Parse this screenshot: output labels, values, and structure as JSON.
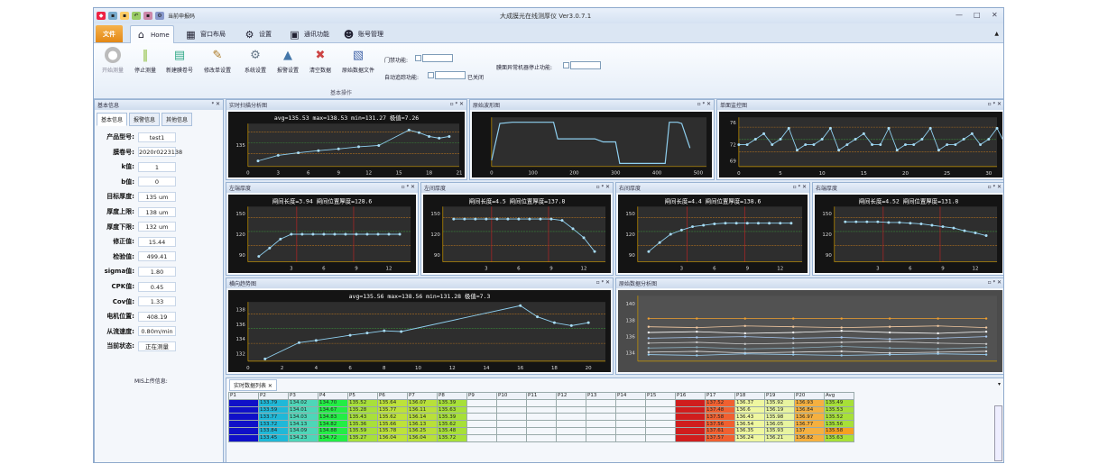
{
  "app": {
    "title": "大成膜光在线测厚仪 Ver3.0.7.1",
    "quick_access_label": "当前申报码",
    "file_tab": "文件",
    "tabs": [
      {
        "label": "Home",
        "icon": "home-icon"
      },
      {
        "label": "窗口布局",
        "icon": "layout-icon"
      },
      {
        "label": "设置",
        "icon": "gear-icon"
      },
      {
        "label": "通讯功能",
        "icon": "comm-icon"
      },
      {
        "label": "账号管理",
        "icon": "user-icon"
      }
    ]
  },
  "ribbon": {
    "buttons": [
      {
        "label": "开始测量",
        "icon": "play-icon"
      },
      {
        "label": "停止测量",
        "icon": "pause-icon"
      },
      {
        "label": "新建膜卷号",
        "icon": "new-roll-icon"
      },
      {
        "label": "修改单设置",
        "icon": "edit-settings-icon"
      },
      {
        "label": "系统设置",
        "icon": "system-settings-icon"
      },
      {
        "label": "报警设置",
        "icon": "alarm-settings-icon"
      },
      {
        "label": "清空数据",
        "icon": "clear-data-icon"
      },
      {
        "label": "原始数据文件",
        "icon": "raw-file-icon"
      }
    ],
    "group_label": "基本操作",
    "gate_label": "门禁功能:",
    "auto_follow_label": "自动追踪功能:",
    "auto_follow_state": "已关闭",
    "stop_on_fault_label": "膜面异常机器停止功能:"
  },
  "left": {
    "header": "基本信息",
    "tabs": [
      "基本信息",
      "报警信息",
      "其他信息"
    ],
    "fields": [
      {
        "label": "产品型号:",
        "value": "test1"
      },
      {
        "label": "膜卷号:",
        "value": "2020r0223138"
      },
      {
        "label": "k值:",
        "value": "1"
      },
      {
        "label": "b值:",
        "value": "0"
      },
      {
        "label": "目标厚度:",
        "value": "135 um"
      },
      {
        "label": "厚度上限:",
        "value": "138 um"
      },
      {
        "label": "厚度下限:",
        "value": "132 um"
      },
      {
        "label": "修正值:",
        "value": "15.44"
      },
      {
        "label": "检验值:",
        "value": "499.41"
      },
      {
        "label": "sigma值:",
        "value": "1.80"
      },
      {
        "label": "CPK值:",
        "value": "0.45"
      },
      {
        "label": "Cov值:",
        "value": "1.33"
      },
      {
        "label": "电机位置:",
        "value": "408.19"
      },
      {
        "label": "从流速度:",
        "value": "0.80m/min"
      },
      {
        "label": "当前状态:",
        "value": "正在测量"
      }
    ],
    "mis_label": "MIS上传信息:"
  },
  "panels": {
    "realtime": {
      "title": "实时扫描分析图",
      "caption": "avg=135.53 max=138.53 min=131.27 极值=7.26"
    },
    "raw": {
      "title": "原始波形图"
    },
    "single": {
      "title": "单面监控图"
    },
    "z1": {
      "title": "左端厚度",
      "caption": "闸间长度=3.94   闸间位置厚度=128.6"
    },
    "z2": {
      "title": "左间厚度",
      "caption": "闸间长度=4.5   闸间位置厚度=137.8"
    },
    "z3": {
      "title": "右间厚度",
      "caption": "闸间长度=4.4   闸间位置厚度=138.6"
    },
    "z4": {
      "title": "右端厚度",
      "caption": "闸间长度=4.52   闸间位置厚度=131.8"
    },
    "profile": {
      "title": "横向趋势图",
      "caption": "avg=135.56 max=138.56 min=131.28 极值=7.3"
    },
    "history": {
      "title": "原始数据分析图"
    },
    "table": {
      "title": "实时数据列表"
    }
  },
  "table": {
    "headers": [
      "P1",
      "P2",
      "P3",
      "P4",
      "P5",
      "P6",
      "P7",
      "P8",
      "P9",
      "P10",
      "P11",
      "P12",
      "P13",
      "P14",
      "P15",
      "P16",
      "P17",
      "P18",
      "P19",
      "P20",
      "Avg"
    ],
    "rows": [
      [
        "",
        "133.79",
        "134.02",
        "134.70",
        "135.52",
        "135.64",
        "136.07",
        "135.39",
        "",
        "",
        "",
        "",
        "",
        "",
        "",
        "",
        "137.52",
        "136.37",
        "135.92",
        "136.93",
        "135.49"
      ],
      [
        "",
        "133.59",
        "134.01",
        "134.67",
        "135.28",
        "135.77",
        "136.11",
        "135.63",
        "",
        "",
        "",
        "",
        "",
        "",
        "",
        "",
        "137.48",
        "136.6",
        "136.19",
        "136.84",
        "135.53"
      ],
      [
        "",
        "133.77",
        "134.03",
        "134.83",
        "135.43",
        "135.62",
        "136.14",
        "135.39",
        "",
        "",
        "",
        "",
        "",
        "",
        "",
        "",
        "137.58",
        "136.43",
        "135.98",
        "136.97",
        "135.52"
      ],
      [
        "",
        "133.72",
        "134.13",
        "134.82",
        "135.36",
        "135.66",
        "136.13",
        "135.62",
        "",
        "",
        "",
        "",
        "",
        "",
        "",
        "",
        "137.56",
        "136.54",
        "136.05",
        "136.77",
        "135.56"
      ],
      [
        "",
        "133.84",
        "134.09",
        "134.88",
        "135.59",
        "135.78",
        "136.25",
        "135.48",
        "",
        "",
        "",
        "",
        "",
        "",
        "",
        "",
        "137.61",
        "136.35",
        "135.93",
        "137",
        "135.58"
      ],
      [
        "",
        "133.45",
        "134.23",
        "134.72",
        "135.27",
        "136.04",
        "136.04",
        "135.72",
        "",
        "",
        "",
        "",
        "",
        "",
        "",
        "",
        "137.57",
        "136.24",
        "136.21",
        "136.82",
        "135.63"
      ]
    ]
  },
  "chart_data": [
    {
      "type": "line",
      "name": "realtime",
      "x": [
        1,
        3,
        5,
        7,
        9,
        11,
        13,
        16,
        17,
        18,
        19,
        20
      ],
      "values": [
        131.3,
        132.6,
        133.2,
        133.7,
        134.1,
        134.6,
        134.9,
        138.5,
        137.9,
        137.0,
        136.6,
        137.0
      ],
      "xticks": [
        0,
        3,
        6,
        9,
        12,
        15,
        18,
        21
      ],
      "yticks": [
        135
      ],
      "ylim": [
        130,
        140
      ],
      "xlim": [
        0,
        21
      ]
    },
    {
      "type": "line",
      "name": "raw",
      "x": [
        0,
        20,
        50,
        150,
        160,
        250,
        270,
        300,
        310,
        420,
        430,
        450,
        460,
        480
      ],
      "values": [
        10,
        70,
        72,
        72,
        45,
        45,
        40,
        40,
        5,
        5,
        72,
        72,
        70,
        30
      ],
      "xticks": [
        0,
        100,
        200,
        300,
        400,
        500
      ],
      "xlim": [
        0,
        520
      ],
      "ylim": [
        0,
        80
      ]
    },
    {
      "type": "line",
      "name": "single",
      "values": [
        72,
        72,
        73,
        74,
        72,
        73,
        75,
        71,
        72,
        72,
        73,
        75,
        71,
        72,
        73,
        74,
        72,
        72,
        75,
        71,
        72,
        72,
        73,
        75,
        71,
        72,
        72,
        73,
        74,
        72,
        73,
        75,
        72,
        71,
        72,
        73,
        74,
        75,
        70
      ],
      "xticks": [
        0,
        5,
        10,
        15,
        20,
        25,
        30
      ],
      "yticks": [
        69,
        72,
        76
      ],
      "ylim": [
        68,
        77
      ],
      "xlim": [
        0,
        31
      ]
    },
    {
      "type": "line",
      "name": "z1",
      "x": [
        0,
        1,
        2,
        3,
        4,
        5,
        6,
        7,
        8,
        9,
        10,
        11,
        12,
        13
      ],
      "values": [
        88,
        100,
        113,
        120,
        120,
        120,
        120,
        120,
        120,
        120,
        120,
        120,
        120,
        120
      ],
      "xticks": [
        3,
        6,
        9,
        12
      ],
      "yticks": [
        90,
        120,
        150
      ],
      "ylim": [
        80,
        160
      ],
      "xlim": [
        -1,
        14
      ]
    },
    {
      "type": "line",
      "name": "z2",
      "x": [
        0,
        1,
        2,
        3,
        4,
        5,
        6,
        7,
        8,
        9,
        10,
        11,
        12,
        13
      ],
      "values": [
        142,
        142,
        142,
        142,
        142,
        142,
        142,
        142,
        142,
        142,
        140,
        128,
        115,
        95
      ],
      "xticks": [
        3,
        6,
        9,
        12
      ],
      "yticks": [
        90,
        120,
        150
      ],
      "ylim": [
        80,
        160
      ],
      "xlim": [
        -1,
        14
      ]
    },
    {
      "type": "line",
      "name": "z3",
      "x": [
        0,
        1,
        2,
        3,
        4,
        5,
        6,
        7,
        8,
        9,
        10,
        11,
        12,
        13
      ],
      "values": [
        95,
        108,
        120,
        126,
        131,
        133,
        135,
        136,
        136,
        136,
        136,
        136,
        136,
        136
      ],
      "xticks": [
        3,
        6,
        9,
        12
      ],
      "yticks": [
        90,
        120,
        150
      ],
      "ylim": [
        80,
        160
      ],
      "xlim": [
        -1,
        14
      ]
    },
    {
      "type": "line",
      "name": "z4",
      "x": [
        0,
        1,
        2,
        3,
        4,
        5,
        6,
        7,
        8,
        9,
        10,
        11,
        12,
        13
      ],
      "values": [
        138,
        138,
        138,
        138,
        137,
        137,
        136,
        135,
        133,
        131,
        129,
        125,
        122,
        118
      ],
      "xticks": [
        3,
        6,
        9,
        12
      ],
      "yticks": [
        90,
        120,
        150
      ],
      "ylim": [
        80,
        160
      ],
      "xlim": [
        -1,
        14
      ]
    },
    {
      "type": "line",
      "name": "profile",
      "x": [
        1,
        3,
        4,
        6,
        7,
        8,
        9,
        16,
        17,
        18,
        19,
        20
      ],
      "values": [
        131.3,
        133.5,
        133.8,
        134.5,
        134.8,
        135.1,
        135.0,
        138.5,
        137.0,
        136.2,
        135.8,
        136.2
      ],
      "xticks": [
        0,
        2,
        4,
        6,
        8,
        10,
        12,
        14,
        16,
        18,
        20
      ],
      "yticks": [
        132,
        134,
        136,
        138
      ],
      "ylim": [
        131,
        139
      ],
      "xlim": [
        0,
        21
      ]
    },
    {
      "type": "line",
      "name": "history",
      "yticks": [
        134,
        136,
        138,
        140
      ],
      "ylim": [
        133,
        141
      ],
      "series": [
        {
          "values": [
            138.2,
            138.2,
            138.2,
            138.2,
            138.2,
            138.2,
            138.2,
            138.2
          ]
        },
        {
          "values": [
            137.2,
            137.1,
            137.3,
            137.2,
            137.1,
            137.2,
            137.3,
            137.1
          ]
        },
        {
          "values": [
            136.5,
            136.6,
            136.4,
            136.5,
            136.7,
            136.5,
            136.4,
            136.6
          ]
        },
        {
          "values": [
            135.8,
            135.9,
            136.0,
            135.8,
            135.9,
            135.7,
            135.8,
            136.0
          ]
        },
        {
          "values": [
            135.2,
            135.3,
            135.1,
            135.2,
            135.3,
            135.4,
            135.2,
            135.1
          ]
        },
        {
          "values": [
            134.6,
            134.7,
            134.5,
            134.6,
            134.8,
            134.6,
            134.5,
            134.7
          ]
        },
        {
          "values": [
            134.1,
            134.2,
            134.0,
            134.1,
            134.2,
            134.0,
            134.1,
            134.2
          ]
        },
        {
          "values": [
            133.8,
            133.7,
            133.9,
            133.8,
            133.7,
            133.8,
            133.9,
            133.8
          ]
        }
      ]
    }
  ]
}
